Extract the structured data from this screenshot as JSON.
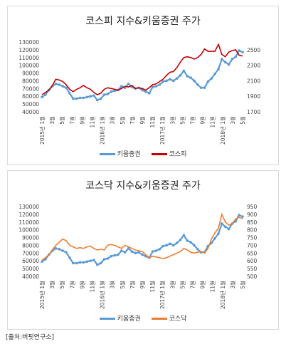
{
  "source": "[출처:버핏연구소]",
  "chart_data": [
    {
      "type": "line",
      "title": "코스피 지수&키움증권 주가",
      "x_labels": [
        "2015년 1월",
        "3월",
        "5월",
        "7월",
        "9월",
        "11월",
        "2016년 1월",
        "3월",
        "5월",
        "7월",
        "9월",
        "11월",
        "2017년 1월",
        "3월",
        "5월",
        "7월",
        "9월",
        "11월",
        "2018년 1월",
        "3월",
        "5월"
      ],
      "y_left": {
        "min": 40000,
        "max": 130000,
        "step": 10000,
        "ticks": [
          "40000",
          "50000",
          "60000",
          "70000",
          "80000",
          "90000",
          "100000",
          "110000",
          "120000",
          "130000"
        ]
      },
      "y_right": {
        "min": 1700,
        "max": 2600,
        "step": 200,
        "ticks": [
          "1700",
          "1900",
          "2100",
          "2300",
          "2500"
        ]
      },
      "colors": {
        "s1": "#5b9bd5",
        "s2": "#c00000"
      },
      "series": [
        {
          "name": "키움증권",
          "axis": "left",
          "marker": true,
          "values": [
            59000,
            62000,
            68000,
            73000,
            76000,
            75000,
            73000,
            71000,
            64000,
            57000,
            57000,
            58000,
            58000,
            59000,
            60000,
            61000,
            55000,
            57000,
            62000,
            63000,
            66000,
            67000,
            68000,
            73000,
            71000,
            76000,
            72000,
            70000,
            71000,
            68000,
            66000,
            64000,
            72000,
            73000,
            75000,
            79000,
            80000,
            82000,
            80000,
            83000,
            87000,
            93000,
            86000,
            84000,
            80000,
            75000,
            71000,
            71000,
            79000,
            83000,
            89000,
            95000,
            108000,
            104000,
            101000,
            108000,
            111000,
            119000,
            117000
          ]
        },
        {
          "name": "코스피",
          "axis": "right",
          "marker": false,
          "values": [
            1920,
            1950,
            1980,
            2040,
            2120,
            2110,
            2090,
            2050,
            1990,
            1960,
            1990,
            2010,
            2040,
            2010,
            1990,
            1950,
            1920,
            1940,
            1990,
            2010,
            2000,
            1990,
            1980,
            2000,
            2030,
            2020,
            2040,
            2000,
            2010,
            2000,
            1980,
            2010,
            2050,
            2060,
            2090,
            2120,
            2170,
            2210,
            2220,
            2270,
            2340,
            2400,
            2410,
            2400,
            2380,
            2400,
            2440,
            2510,
            2480,
            2480,
            2480,
            2570,
            2440,
            2410,
            2470,
            2490,
            2500,
            2430,
            2420
          ]
        }
      ]
    },
    {
      "type": "line",
      "title": "코스닥 지수&키움증권 주가",
      "x_labels": [
        "2015년 1월",
        "3월",
        "5월",
        "7월",
        "9월",
        "11월",
        "2016년 1월",
        "3월",
        "5월",
        "7월",
        "9월",
        "11월",
        "2017년 1월",
        "3월",
        "5월",
        "7월",
        "9월",
        "11월",
        "2018년 1월",
        "3월",
        "5월"
      ],
      "y_left": {
        "min": 40000,
        "max": 130000,
        "step": 10000,
        "ticks": [
          "40000",
          "50000",
          "60000",
          "70000",
          "80000",
          "90000",
          "100000",
          "110000",
          "120000",
          "130000"
        ]
      },
      "y_right": {
        "min": 500,
        "max": 950,
        "step": 50,
        "ticks": [
          "500",
          "550",
          "600",
          "650",
          "700",
          "750",
          "800",
          "850",
          "900",
          "950"
        ]
      },
      "colors": {
        "s1": "#5b9bd5",
        "s2": "#ed7d31"
      },
      "series": [
        {
          "name": "키움증권",
          "axis": "left",
          "marker": true,
          "values": [
            59000,
            62000,
            68000,
            73000,
            76000,
            75000,
            73000,
            71000,
            64000,
            57000,
            57000,
            58000,
            58000,
            59000,
            60000,
            61000,
            55000,
            57000,
            62000,
            63000,
            66000,
            67000,
            68000,
            73000,
            71000,
            76000,
            72000,
            70000,
            71000,
            68000,
            66000,
            64000,
            72000,
            73000,
            75000,
            79000,
            80000,
            82000,
            80000,
            83000,
            87000,
            93000,
            86000,
            84000,
            80000,
            75000,
            71000,
            71000,
            79000,
            83000,
            89000,
            95000,
            108000,
            104000,
            101000,
            108000,
            111000,
            119000,
            117000
          ]
        },
        {
          "name": "코스닥",
          "axis": "right",
          "marker": false,
          "values": [
            605,
            620,
            640,
            670,
            700,
            720,
            740,
            730,
            700,
            690,
            680,
            685,
            680,
            690,
            695,
            680,
            670,
            675,
            670,
            700,
            705,
            700,
            690,
            680,
            700,
            690,
            680,
            670,
            665,
            660,
            640,
            620,
            630,
            625,
            620,
            615,
            620,
            630,
            640,
            650,
            660,
            680,
            670,
            655,
            650,
            655,
            660,
            650,
            680,
            740,
            780,
            810,
            900,
            850,
            830,
            840,
            870,
            880,
            870
          ]
        }
      ]
    }
  ]
}
